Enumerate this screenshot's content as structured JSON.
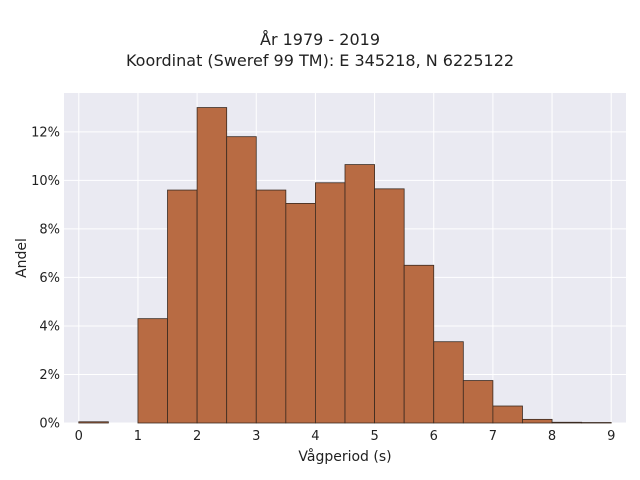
{
  "chart_data": {
    "type": "bar",
    "title": "År 1979 - 2019",
    "subtitle": "Koordinat (Sweref 99 TM): E 345218, N 6225122",
    "xlabel": "Vågperiod (s)",
    "ylabel": "Andel",
    "xlim": [
      -0.25,
      9.25
    ],
    "ylim": [
      0,
      13.6
    ],
    "x_ticks": [
      "0",
      "1",
      "2",
      "3",
      "4",
      "5",
      "6",
      "7",
      "8",
      "9"
    ],
    "y_ticks": [
      "0%",
      "2%",
      "4%",
      "6%",
      "8%",
      "10%",
      "12%"
    ],
    "bins": [
      {
        "x0": 0.0,
        "x1": 0.5,
        "value": 0.05
      },
      {
        "x0": 1.0,
        "x1": 1.5,
        "value": 4.3
      },
      {
        "x0": 1.5,
        "x1": 2.0,
        "value": 9.6
      },
      {
        "x0": 2.0,
        "x1": 2.5,
        "value": 13.0
      },
      {
        "x0": 2.5,
        "x1": 3.0,
        "value": 11.8
      },
      {
        "x0": 3.0,
        "x1": 3.5,
        "value": 9.6
      },
      {
        "x0": 3.5,
        "x1": 4.0,
        "value": 9.05
      },
      {
        "x0": 4.0,
        "x1": 4.5,
        "value": 9.9
      },
      {
        "x0": 4.5,
        "x1": 5.0,
        "value": 10.65
      },
      {
        "x0": 5.0,
        "x1": 5.5,
        "value": 9.65
      },
      {
        "x0": 5.5,
        "x1": 6.0,
        "value": 6.5
      },
      {
        "x0": 6.0,
        "x1": 6.5,
        "value": 3.35
      },
      {
        "x0": 6.5,
        "x1": 7.0,
        "value": 1.75
      },
      {
        "x0": 7.0,
        "x1": 7.5,
        "value": 0.7
      },
      {
        "x0": 7.5,
        "x1": 8.0,
        "value": 0.15
      },
      {
        "x0": 8.0,
        "x1": 8.5,
        "value": 0.03
      },
      {
        "x0": 8.5,
        "x1": 9.0,
        "value": 0.02
      }
    ],
    "grid": true,
    "colors": {
      "bar": "#b86b43",
      "edge": "#3a2a20",
      "plot_bg": "#eaeaf2",
      "grid": "#ffffff"
    }
  }
}
